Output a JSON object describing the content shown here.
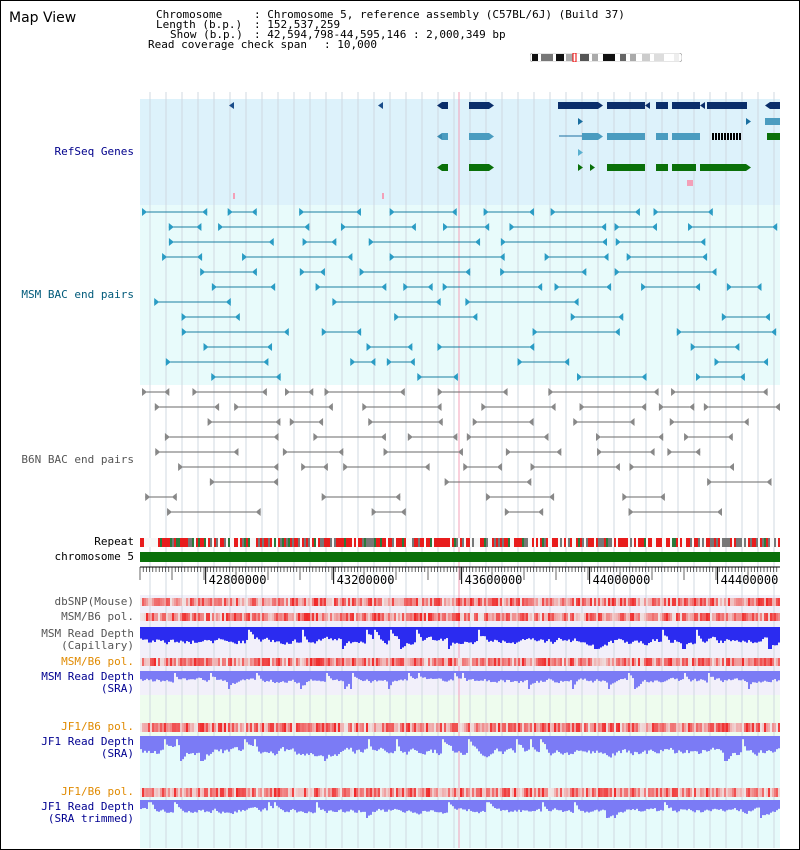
{
  "map_view": {
    "title": "Map View",
    "info": {
      "chromosome_key": "Chromosome",
      "chromosome_val": ": Chromosome 5, reference assembly (C57BL/6J) (Build 37)",
      "length_key": "Length (b.p.)",
      "length_val": ": 152,537,259",
      "show_key": "Show (b.p.)",
      "show_val": ": 42,594,798-44,595,146 : 2,000,349 bp",
      "coverage_key": "Read coverage check span",
      "coverage_val": ": 10,000"
    }
  },
  "tracks": {
    "refseq": {
      "label": "RefSeq Genes",
      "color": "#00008b"
    },
    "msm_bac": {
      "label": "MSM BAC end pairs",
      "color": "#005a7a"
    },
    "b6n_bac": {
      "label": "B6N BAC end pairs",
      "color": "#555555"
    },
    "repeat": {
      "label": "Repeat"
    },
    "chromosome": {
      "label": "chromosome 5"
    },
    "dbsnp": {
      "label": "dbSNP(Mouse)"
    },
    "msm_b6_pol_1": {
      "label": "MSM/B6 pol."
    },
    "msm_read_depth_cap": {
      "label1": "MSM Read Depth",
      "label2": "(Capillary)"
    },
    "msm_b6_pol_2": {
      "label": "MSM/B6 pol."
    },
    "msm_read_depth_sra": {
      "label1": "MSM Read Depth",
      "label2": "(SRA)"
    },
    "jf1_b6_pol_1": {
      "label": "JF1/B6 pol."
    },
    "jf1_read_depth_sra": {
      "label1": "JF1 Read Depth",
      "label2": "(SRA)"
    },
    "jf1_b6_pol_2": {
      "label": "JF1/B6 pol."
    },
    "jf1_read_depth_trim": {
      "label1": "JF1 Read Depth",
      "label2": "(SRA trimmed)"
    }
  },
  "axis": {
    "ticks": [
      "42800000",
      "43200000",
      "43600000",
      "44000000",
      "44400000"
    ],
    "tick_values": [
      42800000,
      43200000,
      43600000,
      44000000,
      44400000
    ],
    "range": [
      42594798,
      44595146
    ]
  },
  "colors": {
    "refseq_bg": "#ddf2fb",
    "bac_bg": "#e8fbfb",
    "b6n_bg": "#ffffff",
    "msm_teal": "#1a7fa0",
    "b6n_gray": "#6a6a6a",
    "repeat_red": "#e81c1c",
    "chrom_green": "#0a700a",
    "depth_blue": "#2b2bf0",
    "depth_lightblue": "#7b7bf5",
    "pol_red": "#f05050",
    "label_navy": "#000090",
    "label_orange": "#e08a00",
    "label_gray": "#555555"
  }
}
